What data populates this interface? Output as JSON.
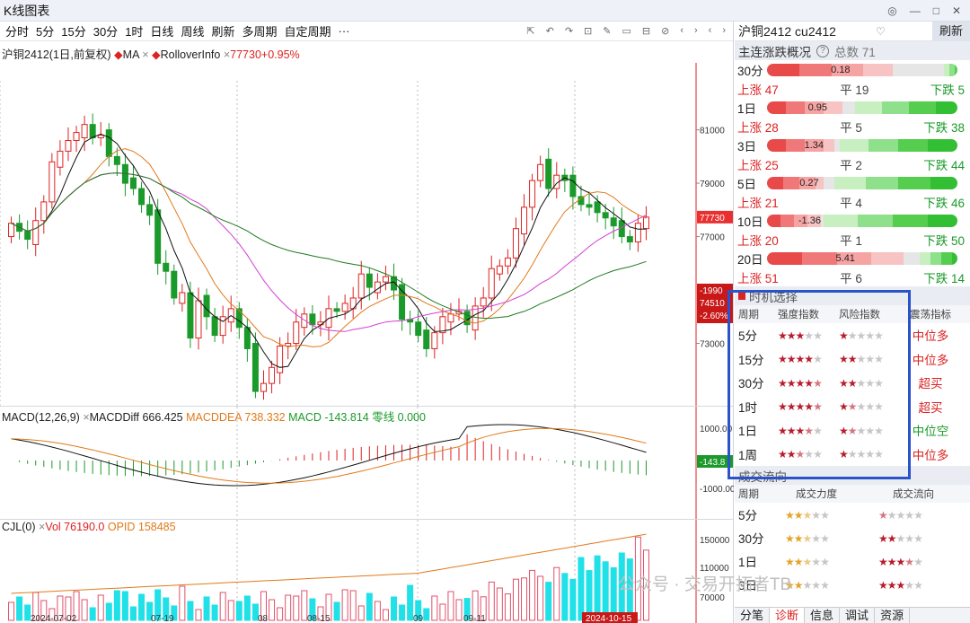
{
  "window": {
    "title": "K线图表",
    "buttons": [
      "◎",
      "—",
      "□",
      "✕"
    ]
  },
  "toolbar": {
    "timeframes": [
      "分时",
      "5分",
      "15分",
      "30分",
      "1时",
      "日线",
      "周线",
      "刷新",
      "多周期",
      "自定周期",
      "···"
    ],
    "tool_icons": [
      "⇱",
      "↶",
      "↷",
      "⊡",
      "✎",
      "▭",
      "⊟",
      "⊘",
      "‹",
      "›",
      "‹",
      "›"
    ]
  },
  "kline": {
    "legend": {
      "symbol": "沪铜2412(1日,前复权)",
      "ma": "MA",
      "rollover": "RolloverInfo",
      "price": "77730+0.95%"
    },
    "yaxis_ticks": [
      {
        "v": 81000,
        "label": "81000"
      },
      {
        "v": 79000,
        "label": "79000"
      },
      {
        "v": 77000,
        "label": "77000"
      },
      {
        "v": 73000,
        "label": "73000"
      }
    ],
    "last_price_tag": "77730",
    "cursor_tags": [
      "-1990",
      "74510",
      "-2.60%"
    ]
  },
  "macd": {
    "legend": {
      "name": "MACD(12,26,9)",
      "diff": "MACDDiff 666.425",
      "dea": "MACDDEA 738.332",
      "macd": "MACD -143.814",
      "zero": "零线 0.000"
    },
    "yaxis_ticks": [
      "1000.00",
      "-1000.00"
    ],
    "value_tag": "-143.8"
  },
  "cjl": {
    "legend": {
      "name": "CJL(0)",
      "vol": "Vol 76190.0",
      "opid": "OPID 158485"
    },
    "yaxis_ticks": [
      "150000",
      "110000",
      "70000"
    ]
  },
  "xaxis": [
    "2024-07-02",
    "07-19",
    "08",
    "08-15",
    "09",
    "09-11",
    "2024-10-15"
  ],
  "right": {
    "symbol": "沪铜2412 cu2412",
    "refresh": "刷新",
    "overview": {
      "title": "主连涨跌概况",
      "total": "总数 71",
      "rows": [
        {
          "period": "30分",
          "value": "0.18",
          "up": "上涨 47",
          "flat": "平 19",
          "down": "下跌 5"
        },
        {
          "period": "1日",
          "value": "0.95",
          "up": "上涨 28",
          "flat": "平 5",
          "down": "下跌 38"
        },
        {
          "period": "3日",
          "value": "1.34",
          "up": "上涨 25",
          "flat": "平 2",
          "down": "下跌 44"
        },
        {
          "period": "5日",
          "value": "0.27",
          "up": "上涨 21",
          "flat": "平 4",
          "down": "下跌 46"
        },
        {
          "period": "10日",
          "value": "-1.36",
          "up": "上涨 20",
          "flat": "平 1",
          "down": "下跌 50"
        },
        {
          "period": "20日",
          "value": "5.41",
          "up": "上涨 51",
          "flat": "平 6",
          "down": "下跌 14"
        }
      ]
    },
    "timing": {
      "title": "时机选择",
      "headers": [
        "周期",
        "强度指数",
        "风险指数",
        "震荡指标"
      ],
      "rows": [
        {
          "period": "5分",
          "strength": 3,
          "risk": 1,
          "osc": "中位多",
          "osc_color": "#d22"
        },
        {
          "period": "15分",
          "strength": 4,
          "risk": 2,
          "osc": "中位多",
          "osc_color": "#d22"
        },
        {
          "period": "30分",
          "strength": 4.5,
          "risk": 2,
          "osc": "超买",
          "osc_color": "#d22"
        },
        {
          "period": "1时",
          "strength": 4.5,
          "risk": 1.5,
          "osc": "超买",
          "osc_color": "#d22"
        },
        {
          "period": "1日",
          "strength": 3.5,
          "risk": 1.5,
          "osc": "中位空",
          "osc_color": "#1a9a2a"
        },
        {
          "period": "1周",
          "strength": 2.5,
          "risk": 1,
          "osc": "中位多",
          "osc_color": "#d22"
        }
      ]
    },
    "flow": {
      "title": "成交流向",
      "headers": [
        "周期",
        "成交力度",
        "成交流向"
      ],
      "rows": [
        {
          "period": "5分",
          "force": 2.5,
          "dir": 0.5
        },
        {
          "period": "30分",
          "force": 2.5,
          "dir": 2
        },
        {
          "period": "1日",
          "force": 2.5,
          "dir": 3.5
        },
        {
          "period": "3日",
          "force": 2,
          "dir": 3
        }
      ]
    },
    "tabs": [
      "分笔",
      "诊断",
      "信息",
      "调试",
      "资源"
    ]
  },
  "watermark": "公众号 · 交易开拓者TB"
}
